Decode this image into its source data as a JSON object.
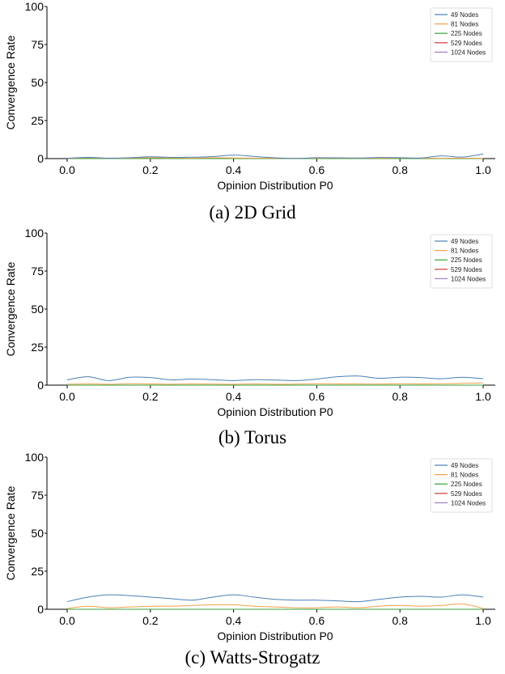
{
  "colors": {
    "49 Nodes": "#4a7fb5",
    "81 Nodes": "#f0a04b",
    "225 Nodes": "#3aa03a",
    "529 Nodes": "#d03b32",
    "1024 Nodes": "#9a7cc4",
    "axis": "#000000"
  },
  "chart_data": [
    {
      "type": "line",
      "caption": "(a) 2D Grid",
      "xlabel": "Opinion Distribution P0",
      "ylabel": "Convergence Rate",
      "xlim": [
        0,
        1
      ],
      "ylim": [
        0,
        100
      ],
      "xticks": [
        "0.0",
        "0.2",
        "0.4",
        "0.6",
        "0.8",
        "1.0"
      ],
      "yticks": [
        "0",
        "25",
        "50",
        "75",
        "100"
      ],
      "legend_position": "top-right",
      "grid": false,
      "x": [
        0.0,
        0.05,
        0.1,
        0.15,
        0.2,
        0.25,
        0.3,
        0.35,
        0.4,
        0.45,
        0.5,
        0.55,
        0.6,
        0.65,
        0.7,
        0.75,
        0.8,
        0.85,
        0.9,
        0.95,
        1.0
      ],
      "series": [
        {
          "name": "49 Nodes",
          "values": [
            0.2,
            0.8,
            0.3,
            0.6,
            1.2,
            0.8,
            0.9,
            1.3,
            2.3,
            1.4,
            0.5,
            0.1,
            0.6,
            0.5,
            0.4,
            0.7,
            0.6,
            0.4,
            1.8,
            1.0,
            3.0
          ]
        },
        {
          "name": "81 Nodes",
          "values": [
            0.1,
            0.5,
            0.2,
            0.3,
            0.6,
            0.4,
            0.3,
            0.5,
            0.4,
            0.3,
            0.2,
            0.2,
            0.3,
            0.3,
            0.2,
            0.3,
            0.4,
            0.3,
            0.2,
            0.3,
            0.2
          ]
        },
        {
          "name": "225 Nodes",
          "values": [
            0.0,
            0.0,
            0.0,
            0.0,
            0.0,
            0.0,
            0.0,
            0.0,
            0.0,
            0.0,
            0.0,
            0.0,
            0.0,
            0.0,
            0.0,
            0.0,
            0.0,
            0.0,
            0.0,
            0.0,
            0.0
          ]
        },
        {
          "name": "529 Nodes",
          "values": [
            0.0,
            0.0,
            0.0,
            0.0,
            0.0,
            0.0,
            0.0,
            0.0,
            0.0,
            0.0,
            0.0,
            0.0,
            0.0,
            0.0,
            0.0,
            0.0,
            0.0,
            0.0,
            0.0,
            0.0,
            0.0
          ]
        },
        {
          "name": "1024 Nodes",
          "values": [
            0.0,
            0.0,
            0.0,
            0.0,
            0.0,
            0.0,
            0.0,
            0.0,
            0.0,
            0.0,
            0.0,
            0.0,
            0.0,
            0.0,
            0.0,
            0.0,
            0.0,
            0.0,
            0.0,
            0.0,
            0.0
          ]
        }
      ]
    },
    {
      "type": "line",
      "caption": "(b) Torus",
      "xlabel": "Opinion Distribution P0",
      "ylabel": "Convergence Rate",
      "xlim": [
        0,
        1
      ],
      "ylim": [
        0,
        100
      ],
      "xticks": [
        "0.0",
        "0.2",
        "0.4",
        "0.6",
        "0.8",
        "1.0"
      ],
      "yticks": [
        "0",
        "25",
        "50",
        "75",
        "100"
      ],
      "legend_position": "top-right",
      "grid": false,
      "x": [
        0.0,
        0.05,
        0.1,
        0.15,
        0.2,
        0.25,
        0.3,
        0.35,
        0.4,
        0.45,
        0.5,
        0.55,
        0.6,
        0.65,
        0.7,
        0.75,
        0.8,
        0.85,
        0.9,
        0.95,
        1.0
      ],
      "series": [
        {
          "name": "49 Nodes",
          "values": [
            3.5,
            5.5,
            3.0,
            5.2,
            5.0,
            3.5,
            4.0,
            3.6,
            3.0,
            3.6,
            3.4,
            3.0,
            4.0,
            5.5,
            6.0,
            4.5,
            5.2,
            5.0,
            4.2,
            5.2,
            4.2
          ]
        },
        {
          "name": "81 Nodes",
          "values": [
            0.6,
            0.8,
            0.6,
            0.9,
            0.8,
            0.6,
            0.8,
            0.7,
            0.6,
            0.8,
            0.6,
            0.7,
            0.9,
            0.8,
            0.8,
            0.7,
            0.9,
            0.8,
            0.9,
            1.2,
            1.5
          ]
        },
        {
          "name": "225 Nodes",
          "values": [
            0.0,
            0.0,
            0.0,
            0.0,
            0.0,
            0.0,
            0.0,
            0.0,
            0.0,
            0.0,
            0.0,
            0.0,
            0.0,
            0.0,
            0.0,
            0.0,
            0.0,
            0.0,
            0.0,
            0.0,
            0.0
          ]
        },
        {
          "name": "529 Nodes",
          "values": [
            0.0,
            0.0,
            0.0,
            0.0,
            0.0,
            0.0,
            0.0,
            0.0,
            0.0,
            0.0,
            0.0,
            0.0,
            0.0,
            0.0,
            0.0,
            0.0,
            0.0,
            0.0,
            0.0,
            0.0,
            0.0
          ]
        },
        {
          "name": "1024 Nodes",
          "values": [
            0.0,
            0.0,
            0.0,
            0.0,
            0.0,
            0.0,
            0.0,
            0.0,
            0.0,
            0.0,
            0.0,
            0.0,
            0.0,
            0.0,
            0.0,
            0.0,
            0.0,
            0.0,
            0.0,
            0.0,
            0.0
          ]
        }
      ]
    },
    {
      "type": "line",
      "caption": "(c) Watts-Strogatz",
      "xlabel": "Opinion Distribution P0",
      "ylabel": "Convergence Rate",
      "xlim": [
        0,
        1
      ],
      "ylim": [
        0,
        100
      ],
      "xticks": [
        "0.0",
        "0.2",
        "0.4",
        "0.6",
        "0.8",
        "1.0"
      ],
      "yticks": [
        "0",
        "25",
        "50",
        "75",
        "100"
      ],
      "legend_position": "top-right",
      "grid": false,
      "x": [
        0.0,
        0.05,
        0.1,
        0.15,
        0.2,
        0.25,
        0.3,
        0.35,
        0.4,
        0.45,
        0.5,
        0.55,
        0.6,
        0.65,
        0.7,
        0.75,
        0.8,
        0.85,
        0.9,
        0.95,
        1.0
      ],
      "series": [
        {
          "name": "49 Nodes",
          "values": [
            5.0,
            8.0,
            9.5,
            9.0,
            8.0,
            7.0,
            6.0,
            8.0,
            9.5,
            8.0,
            6.5,
            6.0,
            6.0,
            5.5,
            5.0,
            6.5,
            8.0,
            8.5,
            8.0,
            9.5,
            8.0
          ]
        },
        {
          "name": "81 Nodes",
          "values": [
            0.5,
            2.0,
            1.0,
            1.5,
            2.0,
            2.0,
            2.5,
            3.0,
            3.0,
            2.0,
            1.5,
            1.0,
            1.0,
            1.5,
            1.0,
            2.0,
            2.5,
            2.0,
            2.5,
            3.5,
            0.5
          ]
        },
        {
          "name": "225 Nodes",
          "values": [
            0.0,
            0.0,
            0.0,
            0.0,
            0.0,
            0.0,
            0.0,
            0.0,
            0.0,
            0.0,
            0.0,
            0.0,
            0.0,
            0.0,
            0.0,
            0.0,
            0.0,
            0.0,
            0.0,
            0.0,
            0.0
          ]
        },
        {
          "name": "529 Nodes",
          "values": [
            0.0,
            0.0,
            0.0,
            0.0,
            0.0,
            0.0,
            0.0,
            0.0,
            0.0,
            0.0,
            0.0,
            0.0,
            0.0,
            0.0,
            0.0,
            0.0,
            0.0,
            0.0,
            0.0,
            0.0,
            0.0
          ]
        },
        {
          "name": "1024 Nodes",
          "values": [
            0.0,
            0.0,
            0.0,
            0.0,
            0.0,
            0.0,
            0.0,
            0.0,
            0.0,
            0.0,
            0.0,
            0.0,
            0.0,
            0.0,
            0.0,
            0.0,
            0.0,
            0.0,
            0.0,
            0.0,
            0.0
          ]
        }
      ]
    }
  ]
}
